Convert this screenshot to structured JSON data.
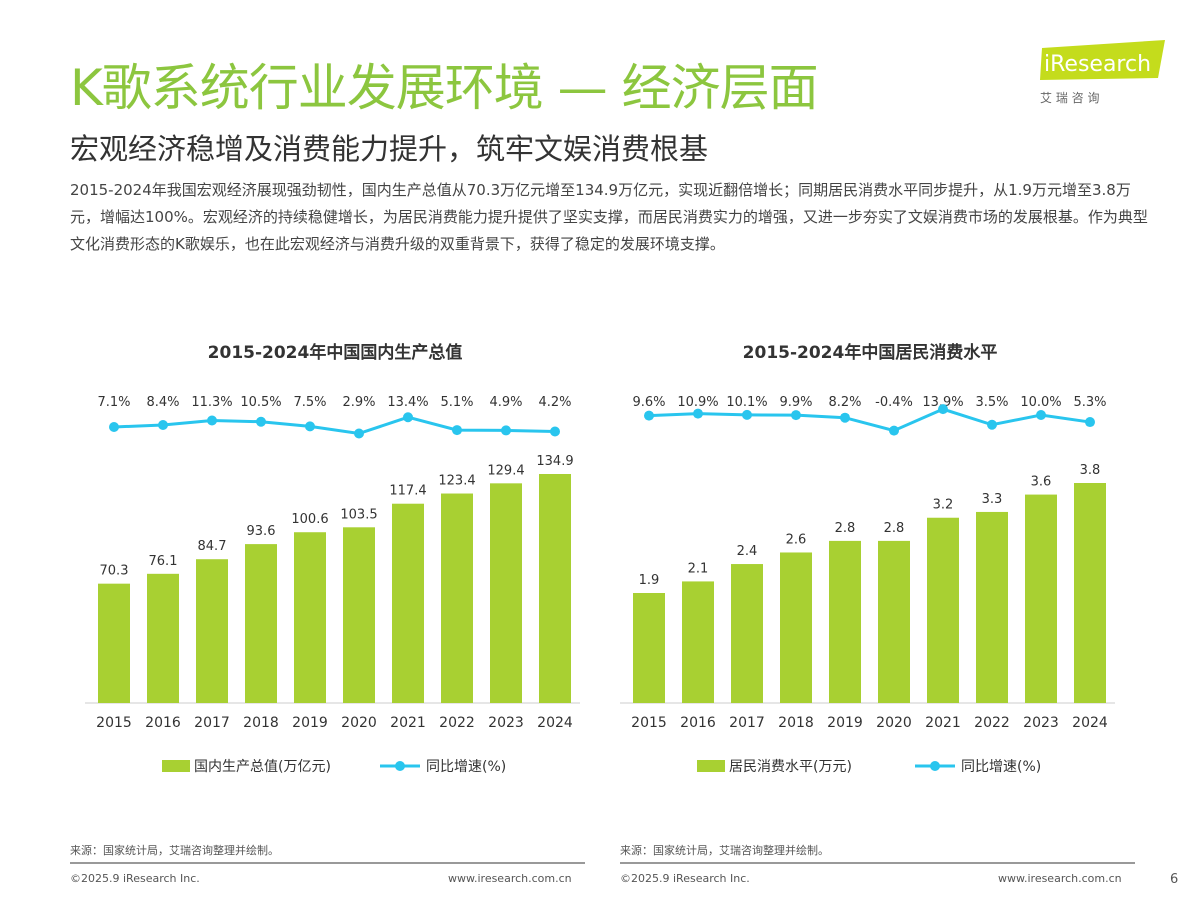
{
  "header": {
    "title": "K歌系统行业发展环境 — 经济层面",
    "subtitle": "宏观经济稳增及消费能力提升，筑牢文娱消费根基",
    "body": "2015-2024年我国宏观经济展现强劲韧性，国内生产总值从70.3万亿元增至134.9万亿元，实现近翻倍增长；同期居民消费水平同步提升，从1.9万元增至3.8万元，增幅达100%。宏观经济的持续稳健增长，为居民消费能力提升提供了坚实支撑，而居民消费实力的增强，又进一步夯实了文娱消费市场的发展根基。作为典型文化消费形态的K歌娱乐，也在此宏观经济与消费升级的双重背景下，获得了稳定的发展环境支撑。"
  },
  "logo": {
    "text": "iResearch",
    "sub": "艾 瑞 咨 询"
  },
  "colors": {
    "bar": "#a8d032",
    "line": "#29c5ee",
    "title": "#8cc63f"
  },
  "chart_data": [
    {
      "type": "bar",
      "title": "2015-2024年中国国内生产总值",
      "categories": [
        "2015",
        "2016",
        "2017",
        "2018",
        "2019",
        "2020",
        "2021",
        "2022",
        "2023",
        "2024"
      ],
      "series": [
        {
          "name": "国内生产总值(万亿元)",
          "type": "bar",
          "values": [
            70.3,
            76.1,
            84.7,
            93.6,
            100.6,
            103.5,
            117.4,
            123.4,
            129.4,
            134.9
          ]
        },
        {
          "name": "同比增速(%)",
          "type": "line",
          "values": [
            7.1,
            8.4,
            11.3,
            10.5,
            7.5,
            2.9,
            13.4,
            5.1,
            4.9,
            4.2
          ],
          "labels": [
            "7.1%",
            "8.4%",
            "11.3%",
            "10.5%",
            "7.5%",
            "2.9%",
            "13.4%",
            "5.1%",
            "4.9%",
            "4.2%"
          ]
        }
      ],
      "legend": "bottom"
    },
    {
      "type": "bar",
      "title": "2015-2024年中国居民消费水平",
      "categories": [
        "2015",
        "2016",
        "2017",
        "2018",
        "2019",
        "2020",
        "2021",
        "2022",
        "2023",
        "2024"
      ],
      "series": [
        {
          "name": "居民消费水平(万元)",
          "type": "bar",
          "values": [
            1.9,
            2.1,
            2.4,
            2.6,
            2.8,
            2.8,
            3.2,
            3.3,
            3.6,
            3.8
          ]
        },
        {
          "name": "同比增速(%)",
          "type": "line",
          "values": [
            9.6,
            10.9,
            10.1,
            9.9,
            8.2,
            -0.4,
            13.9,
            3.5,
            10.0,
            5.3
          ],
          "labels": [
            "9.6%",
            "10.9%",
            "10.1%",
            "9.9%",
            "8.2%",
            "-0.4%",
            "13.9%",
            "3.5%",
            "10.0%",
            "5.3%"
          ]
        }
      ],
      "legend": "bottom"
    }
  ],
  "footer": {
    "source": "来源：国家统计局，艾瑞咨询整理并绘制。",
    "copyright": "©2025.9 iResearch Inc.",
    "url": "www.iresearch.com.cn",
    "page": "6"
  }
}
